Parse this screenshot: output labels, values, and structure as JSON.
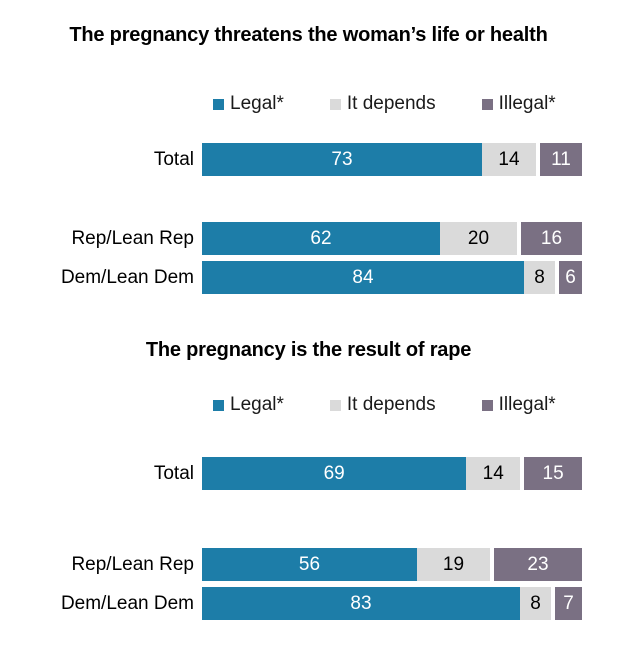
{
  "colors": {
    "legal": "#1D7DA8",
    "it_depends": "#DADADA",
    "illegal": "#7A7083",
    "background": "#FFFFFF",
    "title_text": "#000000"
  },
  "charts": [
    {
      "title": "The pregnancy threatens the woman’s life or health",
      "legend": [
        {
          "label": "Legal*"
        },
        {
          "label": "It depends"
        },
        {
          "label": "Illegal*"
        }
      ],
      "rows": [
        {
          "label": "Total",
          "values": [
            73,
            14,
            11
          ]
        },
        {
          "label": "Rep/Lean Rep",
          "values": [
            62,
            20,
            16
          ]
        },
        {
          "label": "Dem/Lean Dem",
          "values": [
            84,
            8,
            6
          ]
        }
      ]
    },
    {
      "title": "The pregnancy is the result of rape",
      "legend": [
        {
          "label": "Legal*"
        },
        {
          "label": "It depends"
        },
        {
          "label": "Illegal*"
        }
      ],
      "rows": [
        {
          "label": "Total",
          "values": [
            69,
            14,
            15
          ]
        },
        {
          "label": "Rep/Lean Rep",
          "values": [
            56,
            19,
            23
          ]
        },
        {
          "label": "Dem/Lean Dem",
          "values": [
            83,
            8,
            7
          ]
        }
      ]
    }
  ],
  "chart_data": [
    {
      "type": "bar",
      "orientation": "horizontal",
      "stacked": true,
      "title": "The pregnancy threatens the woman’s life or health",
      "categories": [
        "Total",
        "Rep/Lean Rep",
        "Dem/Lean Dem"
      ],
      "series": [
        {
          "name": "Legal*",
          "values": [
            73,
            62,
            84
          ],
          "color": "#1D7DA8"
        },
        {
          "name": "It depends",
          "values": [
            14,
            20,
            8
          ],
          "color": "#DADADA"
        },
        {
          "name": "Illegal*",
          "values": [
            11,
            16,
            6
          ],
          "color": "#7A7083"
        }
      ],
      "xlim": [
        0,
        100
      ],
      "grid": false,
      "legend_position": "top",
      "data_labels": true
    },
    {
      "type": "bar",
      "orientation": "horizontal",
      "stacked": true,
      "title": "The pregnancy is the result of rape",
      "categories": [
        "Total",
        "Rep/Lean Rep",
        "Dem/Lean Dem"
      ],
      "series": [
        {
          "name": "Legal*",
          "values": [
            69,
            56,
            83
          ],
          "color": "#1D7DA8"
        },
        {
          "name": "It depends",
          "values": [
            14,
            19,
            8
          ],
          "color": "#DADADA"
        },
        {
          "name": "Illegal*",
          "values": [
            15,
            23,
            7
          ],
          "color": "#7A7083"
        }
      ],
      "xlim": [
        0,
        100
      ],
      "grid": false,
      "legend_position": "top",
      "data_labels": true
    }
  ]
}
